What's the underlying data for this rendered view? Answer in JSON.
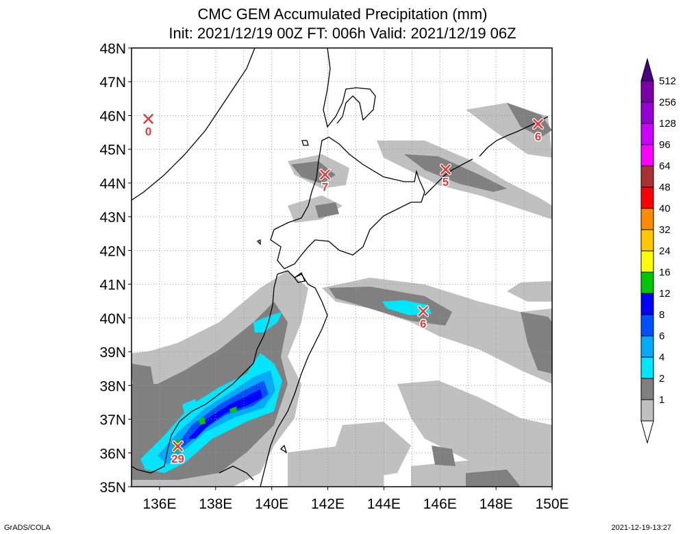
{
  "title": "CMC GEM Accumulated Precipitation (mm)",
  "subtitle": "Init: 2021/12/19 00Z  FT: 006h  Valid: 2021/12/19 06Z",
  "footer_left": "GrADS/COLA",
  "footer_right": "2021-12-19-13:27",
  "lat_labels": [
    "48N",
    "47N",
    "46N",
    "45N",
    "44N",
    "43N",
    "42N",
    "41N",
    "40N",
    "39N",
    "38N",
    "37N",
    "36N",
    "35N"
  ],
  "lon_labels": [
    "136E",
    "138E",
    "140E",
    "142E",
    "144E",
    "146E",
    "148E",
    "150E"
  ],
  "legend": {
    "levels": [
      "512",
      "256",
      "128",
      "96",
      "64",
      "48",
      "40",
      "32",
      "24",
      "16",
      "12",
      "8",
      "6",
      "4",
      "2",
      "1"
    ],
    "colors": [
      "#7a00a8",
      "#9400d3",
      "#cc00ff",
      "#ff00ff",
      "#a83232",
      "#ff0000",
      "#ff8c00",
      "#ffc800",
      "#ffff00",
      "#00c800",
      "#0000ff",
      "#0050ff",
      "#00aaff",
      "#00e6ff",
      "#808080",
      "#c0c0c0"
    ],
    "top_arrow_color": "#4b0082",
    "bottom_arrow_color": "#ffffff"
  },
  "markers": [
    {
      "value": "0",
      "lon": 135.6,
      "lat": 45.9
    },
    {
      "value": "7",
      "lon": 141.9,
      "lat": 44.25
    },
    {
      "value": "5",
      "lon": 146.2,
      "lat": 44.4
    },
    {
      "value": "6",
      "lon": 149.5,
      "lat": 45.75
    },
    {
      "value": "6",
      "lon": 145.4,
      "lat": 40.2
    },
    {
      "value": "29",
      "lon": 136.65,
      "lat": 36.2
    }
  ]
}
